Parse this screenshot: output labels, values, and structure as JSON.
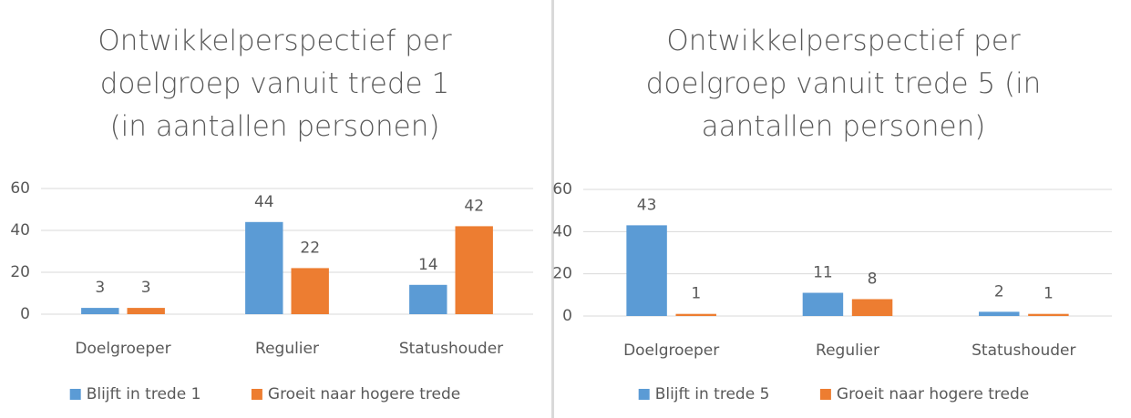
{
  "chart_data": [
    {
      "type": "bar",
      "title": "Ontwikkelperspectief per doelgroep vanuit trede 1 (in aantallen personen)",
      "categories": [
        "Doelgroeper",
        "Regulier",
        "Statushouder"
      ],
      "series": [
        {
          "name": "Blijft in trede 1",
          "color": "#5b9bd5",
          "values": [
            3,
            44,
            14
          ]
        },
        {
          "name": "Groeit naar hogere trede",
          "color": "#ed7d31",
          "values": [
            3,
            22,
            42
          ]
        }
      ],
      "ylim": [
        0,
        60
      ],
      "yticks": [
        0,
        20,
        40,
        60
      ],
      "grid": true,
      "legend": "bottom"
    },
    {
      "type": "bar",
      "title": "Ontwikkelperspectief per doelgroep vanuit trede 5 (in aantallen personen)",
      "categories": [
        "Doelgroeper",
        "Regulier",
        "Statushouder"
      ],
      "series": [
        {
          "name": "Blijft in trede 5",
          "color": "#5b9bd5",
          "values": [
            43,
            11,
            2
          ]
        },
        {
          "name": "Groeit naar hogere trede",
          "color": "#ed7d31",
          "values": [
            1,
            8,
            1
          ]
        }
      ],
      "ylim": [
        0,
        60
      ],
      "yticks": [
        0,
        20,
        40,
        60
      ],
      "grid": true,
      "legend": "bottom"
    }
  ]
}
